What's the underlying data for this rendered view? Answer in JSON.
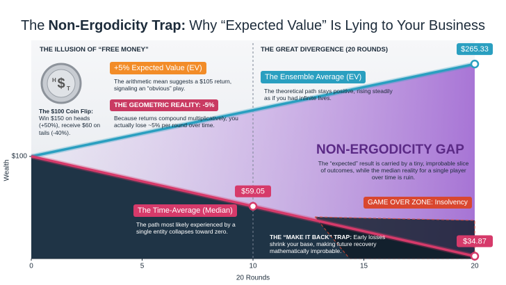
{
  "chart_data": {
    "type": "line",
    "title": {
      "prefix": "The",
      "emphasis": "Non-Ergodicity Trap:",
      "rest": "Why “Expected Value” Is Lying to Your Business"
    },
    "x": [
      0,
      1,
      2,
      3,
      4,
      5,
      6,
      7,
      8,
      9,
      10,
      11,
      12,
      13,
      14,
      15,
      16,
      17,
      18,
      19,
      20
    ],
    "xlim": [
      0,
      20
    ],
    "xticks": [
      0,
      5,
      10,
      15,
      20
    ],
    "xlabel": "20 Rounds",
    "ylabel": "Wealth",
    "log_scale": true,
    "ylim": [
      34,
      290
    ],
    "yticks": [
      {
        "value": 100,
        "label": "$100"
      }
    ],
    "divider_x": 10,
    "series": [
      {
        "name": "The Ensemble Average (EV)",
        "color": "#2a9fc0",
        "values": [
          100,
          105,
          110.25,
          115.76,
          121.55,
          127.63,
          134.01,
          140.71,
          147.75,
          155.13,
          162.89,
          171.03,
          179.59,
          188.56,
          197.99,
          207.89,
          218.29,
          229.2,
          240.66,
          252.7,
          265.33
        ],
        "value_labels": [
          null,
          null,
          null,
          null,
          null,
          null,
          null,
          null,
          null,
          null,
          null,
          null,
          null,
          null,
          null,
          null,
          null,
          null,
          null,
          null,
          "$265.33"
        ]
      },
      {
        "name": "The Time-Average (Median)",
        "color": "#d63a6a",
        "values": [
          100,
          94.87,
          90,
          85.38,
          81,
          76.84,
          72.9,
          69.16,
          65.61,
          62.24,
          59.05,
          56.02,
          53.14,
          50.42,
          47.83,
          45.38,
          43.05,
          40.84,
          38.74,
          36.76,
          34.87
        ],
        "value_labels": [
          null,
          null,
          null,
          null,
          null,
          null,
          null,
          null,
          null,
          null,
          "$59.05",
          null,
          null,
          null,
          null,
          null,
          null,
          null,
          null,
          null,
          "$34.87"
        ]
      }
    ],
    "annotations": {
      "section_left": "THE ILLUSION OF “FREE MONEY”",
      "section_right": "THE GREAT DIVERGENCE (20 ROUNDS)",
      "coin": {
        "heads": "H",
        "symbol": "$",
        "tails": "T"
      },
      "coin_flip": {
        "label": "The $100 Coin Flip:",
        "text": "Win $150 on heads (+50%), receive $60 on tails (-40%)."
      },
      "ev": {
        "label": "+5% Expected Value (EV)",
        "text": "The arithmetic mean suggests a $105 return, signaling an “obvious” play."
      },
      "geometric": {
        "label": "THE GEOMETRIC REALITY: -5%",
        "text": "Because returns compound multiplicatively, you actually lose ~5% per round over time."
      },
      "ensemble": {
        "text": "The theoretical path stays positive, rising steadily as if you had infinite lives."
      },
      "gap": {
        "label": "NON-ERGODICITY GAP",
        "text": "The “expected” result is carried by a tiny, improbable slice of outcomes, while the median reality for a single player over time is ruin."
      },
      "median": {
        "text": "The path most likely experienced by a single entity collapses toward zero."
      },
      "game_over": "GAME OVER ZONE: Insolvency",
      "make_back": {
        "label": "THE “MAKE IT BACK” TRAP:",
        "text": "Early losses shrink your base, making future recovery mathematically improbable."
      }
    }
  }
}
